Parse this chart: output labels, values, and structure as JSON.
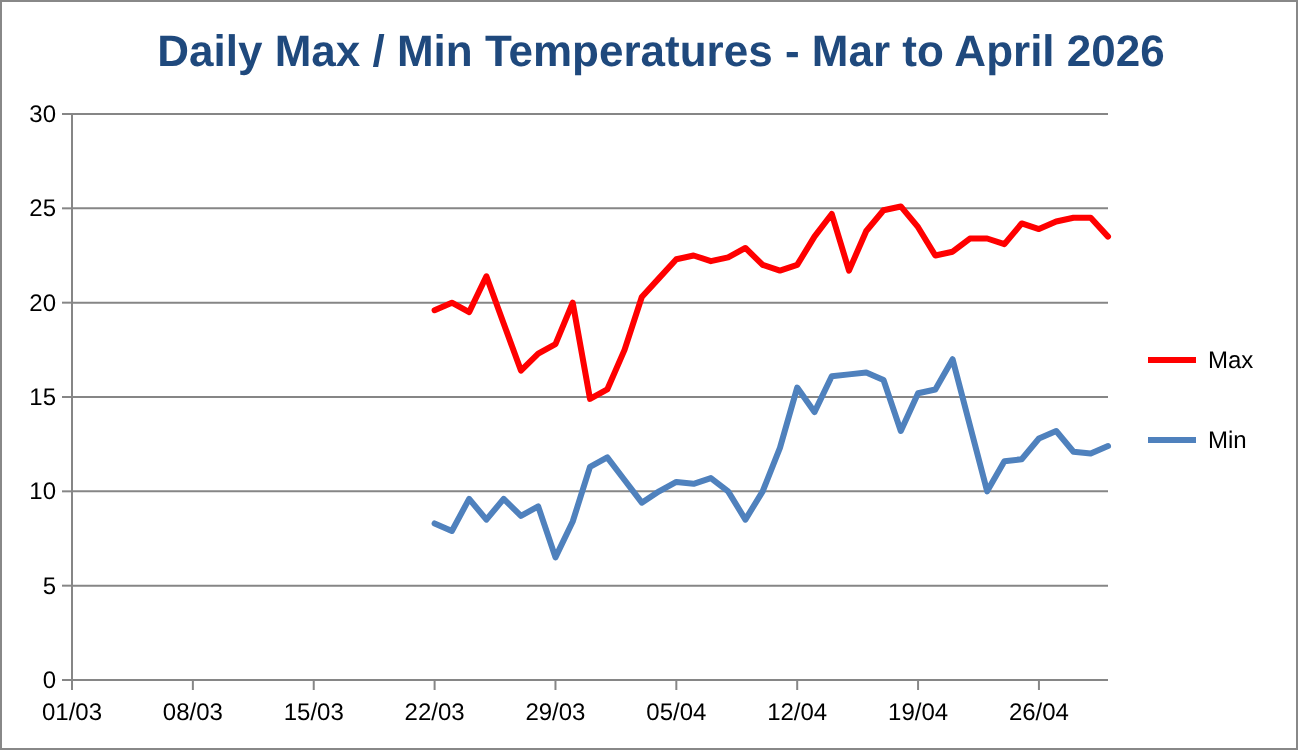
{
  "chart_data": {
    "type": "line",
    "title": "Daily Max / Min Temperatures - Mar to April 2026",
    "x": [
      "2026-03-22",
      "2026-03-23",
      "2026-03-24",
      "2026-03-25",
      "2026-03-26",
      "2026-03-27",
      "2026-03-28",
      "2026-03-29",
      "2026-03-30",
      "2026-03-31",
      "2026-04-01",
      "2026-04-02",
      "2026-04-03",
      "2026-04-04",
      "2026-04-05",
      "2026-04-06",
      "2026-04-07",
      "2026-04-08",
      "2026-04-09",
      "2026-04-10",
      "2026-04-11",
      "2026-04-12",
      "2026-04-13",
      "2026-04-14",
      "2026-04-15",
      "2026-04-16",
      "2026-04-17",
      "2026-04-18",
      "2026-04-19",
      "2026-04-20",
      "2026-04-21",
      "2026-04-22",
      "2026-04-23",
      "2026-04-24",
      "2026-04-25",
      "2026-04-26",
      "2026-04-27",
      "2026-04-28",
      "2026-04-29",
      "2026-04-30"
    ],
    "series": [
      {
        "name": "Max",
        "color": "#ff0000",
        "values": [
          19.6,
          20.0,
          19.5,
          21.4,
          18.9,
          16.4,
          17.3,
          17.8,
          20.0,
          14.9,
          15.4,
          17.5,
          20.3,
          21.3,
          22.3,
          22.5,
          22.2,
          22.4,
          22.9,
          22.0,
          21.7,
          22.0,
          23.5,
          24.7,
          21.7,
          23.8,
          24.9,
          25.1,
          24.0,
          22.5,
          22.7,
          23.4,
          23.4,
          23.1,
          24.2,
          23.9,
          24.3,
          24.5,
          24.5,
          23.5
        ]
      },
      {
        "name": "Min",
        "color": "#4f81bd",
        "values": [
          8.3,
          7.9,
          9.6,
          8.5,
          9.6,
          8.7,
          9.2,
          6.5,
          8.4,
          11.3,
          11.8,
          10.6,
          9.4,
          10.0,
          10.5,
          10.4,
          10.7,
          10.0,
          8.5,
          10.0,
          12.3,
          15.5,
          14.2,
          16.1,
          16.2,
          16.3,
          15.9,
          13.2,
          15.2,
          15.4,
          17.0,
          13.5,
          10.0,
          11.6,
          11.7,
          12.8,
          13.2,
          12.1,
          12.0,
          12.4
        ]
      }
    ],
    "xlim": [
      "2026-03-01",
      "2026-04-30"
    ],
    "xticks": [
      {
        "value": "2026-03-01",
        "label": "01/03"
      },
      {
        "value": "2026-03-08",
        "label": "08/03"
      },
      {
        "value": "2026-03-15",
        "label": "15/03"
      },
      {
        "value": "2026-03-22",
        "label": "22/03"
      },
      {
        "value": "2026-03-29",
        "label": "29/03"
      },
      {
        "value": "2026-04-05",
        "label": "05/04"
      },
      {
        "value": "2026-04-12",
        "label": "12/04"
      },
      {
        "value": "2026-04-19",
        "label": "19/04"
      },
      {
        "value": "2026-04-26",
        "label": "26/04"
      }
    ],
    "ylim": [
      0,
      30
    ],
    "yticks": [
      0,
      5,
      10,
      15,
      20,
      25,
      30
    ],
    "grid": "y",
    "legend": "right",
    "marker": "none",
    "line_style": "solid"
  }
}
